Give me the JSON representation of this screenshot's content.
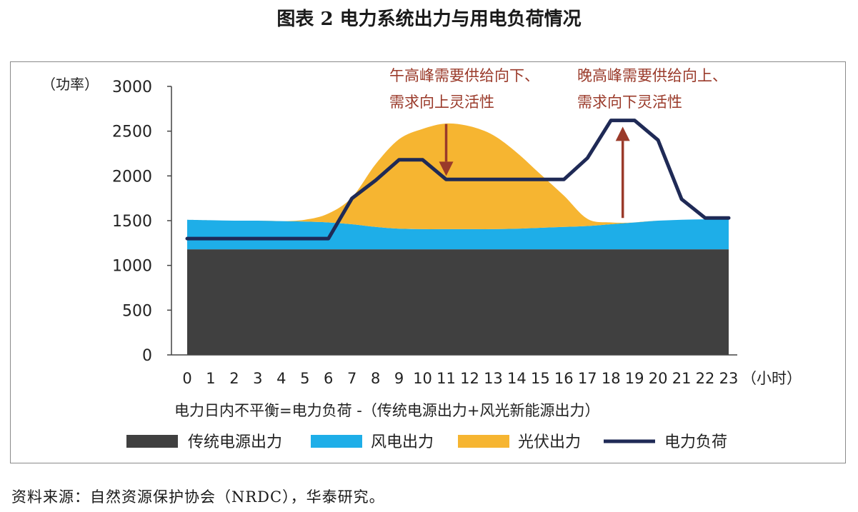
{
  "title": "图表 2  电力系统出力与用电负荷情况",
  "source": "资料来源：自然资源保护协会（NRDC），华泰研究。",
  "chart_data": {
    "type": "area",
    "x": [
      0,
      1,
      2,
      3,
      4,
      5,
      6,
      7,
      8,
      9,
      10,
      11,
      12,
      13,
      14,
      15,
      16,
      17,
      18,
      19,
      20,
      21,
      22,
      23
    ],
    "xtick_labels": [
      "0",
      "1",
      "2",
      "3",
      "4",
      "5",
      "6",
      "7",
      "8",
      "9",
      "10",
      "11",
      "12",
      "13",
      "14",
      "15",
      "16",
      "17",
      "18",
      "19",
      "20",
      "21",
      "22",
      "23"
    ],
    "xlabel": "（小时）",
    "ylabel": "（功率）",
    "ylim": [
      0,
      3000
    ],
    "yticks": [
      0,
      500,
      1000,
      1500,
      2000,
      2500,
      3000
    ],
    "formula": "电力日内不平衡=电力负荷 -（传统电源出力+风光新能源出力）",
    "series": [
      {
        "name": "传统电源出力",
        "kind": "stacked-area",
        "color": "#404040",
        "values": [
          1180,
          1180,
          1180,
          1180,
          1180,
          1180,
          1180,
          1180,
          1180,
          1180,
          1180,
          1180,
          1180,
          1180,
          1180,
          1180,
          1180,
          1180,
          1180,
          1180,
          1180,
          1180,
          1180,
          1180
        ]
      },
      {
        "name": "风电出力",
        "kind": "stacked-area",
        "color": "#1eaee8",
        "values": [
          330,
          325,
          320,
          320,
          315,
          310,
          300,
          280,
          250,
          230,
          225,
          225,
          225,
          225,
          230,
          240,
          250,
          260,
          280,
          300,
          320,
          330,
          335,
          340
        ]
      },
      {
        "name": "光伏出力",
        "kind": "stacked-area",
        "color": "#f6b531",
        "values": [
          0,
          0,
          0,
          0,
          0,
          20,
          100,
          300,
          700,
          1000,
          1120,
          1180,
          1150,
          1050,
          850,
          600,
          350,
          80,
          20,
          0,
          0,
          0,
          0,
          0
        ]
      },
      {
        "name": "电力负荷",
        "kind": "line",
        "color": "#1f2a56",
        "values": [
          1300,
          1300,
          1300,
          1300,
          1300,
          1300,
          1300,
          1750,
          1950,
          2180,
          2180,
          1960,
          1960,
          1960,
          1960,
          1960,
          1960,
          2200,
          2620,
          2620,
          2400,
          1740,
          1530,
          1530
        ]
      }
    ],
    "annotations": [
      {
        "line1": "午高峰需要供给向下、",
        "line2": "需求向上灵活性",
        "color": "#9a3a2a",
        "arrow": "down",
        "x": 11,
        "from": 2580,
        "to": 2000
      },
      {
        "line1": "晚高峰需要供给向上、",
        "line2": "需求向下灵活性",
        "color": "#9a3a2a",
        "arrow": "up",
        "x": 18.5,
        "from": 1530,
        "to": 2550
      }
    ],
    "legend": {
      "placement": "bottom"
    }
  }
}
